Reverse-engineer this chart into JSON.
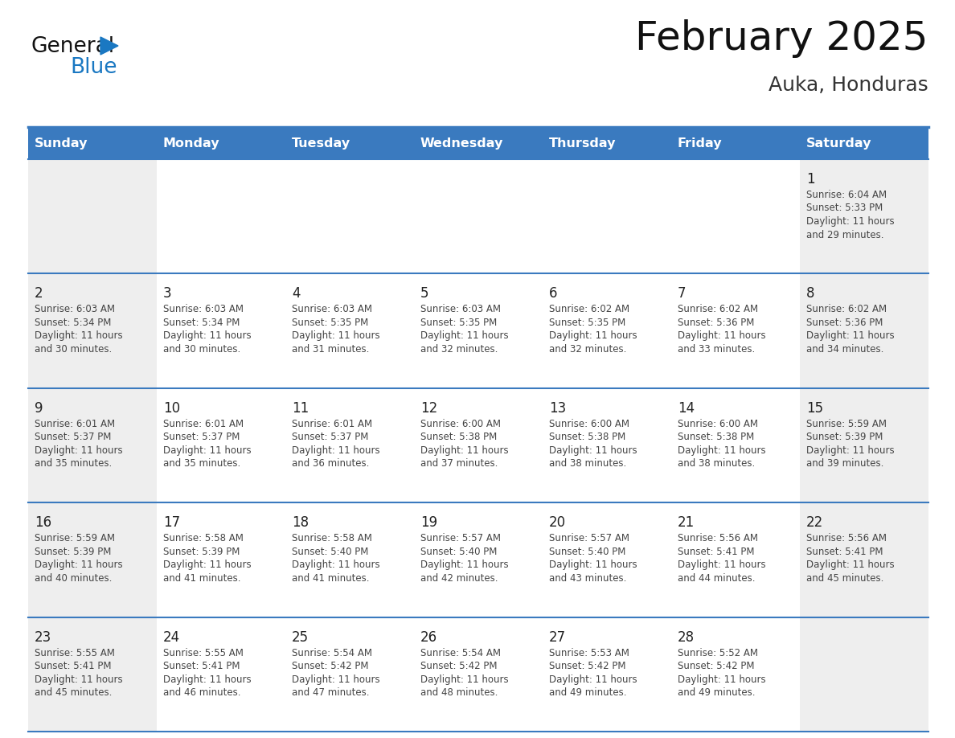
{
  "title": "February 2025",
  "subtitle": "Auka, Honduras",
  "days_of_week": [
    "Sunday",
    "Monday",
    "Tuesday",
    "Wednesday",
    "Thursday",
    "Friday",
    "Saturday"
  ],
  "header_bg": "#3a7abf",
  "header_text_color": "#ffffff",
  "cell_bg_weekend": "#eeeeee",
  "cell_bg_weekday": "#ffffff",
  "day_num_color": "#222222",
  "text_color": "#444444",
  "border_color": "#3a7abf",
  "title_color": "#111111",
  "subtitle_color": "#333333",
  "logo_general_color": "#111111",
  "logo_blue_color": "#1a78c2",
  "weeks": [
    [
      {
        "day": null,
        "sunrise": null,
        "sunset": null,
        "daylight_hours": null,
        "daylight_mins": null
      },
      {
        "day": null,
        "sunrise": null,
        "sunset": null,
        "daylight_hours": null,
        "daylight_mins": null
      },
      {
        "day": null,
        "sunrise": null,
        "sunset": null,
        "daylight_hours": null,
        "daylight_mins": null
      },
      {
        "day": null,
        "sunrise": null,
        "sunset": null,
        "daylight_hours": null,
        "daylight_mins": null
      },
      {
        "day": null,
        "sunrise": null,
        "sunset": null,
        "daylight_hours": null,
        "daylight_mins": null
      },
      {
        "day": null,
        "sunrise": null,
        "sunset": null,
        "daylight_hours": null,
        "daylight_mins": null
      },
      {
        "day": 1,
        "sunrise": "6:04 AM",
        "sunset": "5:33 PM",
        "daylight_hours": 11,
        "daylight_mins": 29
      }
    ],
    [
      {
        "day": 2,
        "sunrise": "6:03 AM",
        "sunset": "5:34 PM",
        "daylight_hours": 11,
        "daylight_mins": 30
      },
      {
        "day": 3,
        "sunrise": "6:03 AM",
        "sunset": "5:34 PM",
        "daylight_hours": 11,
        "daylight_mins": 30
      },
      {
        "day": 4,
        "sunrise": "6:03 AM",
        "sunset": "5:35 PM",
        "daylight_hours": 11,
        "daylight_mins": 31
      },
      {
        "day": 5,
        "sunrise": "6:03 AM",
        "sunset": "5:35 PM",
        "daylight_hours": 11,
        "daylight_mins": 32
      },
      {
        "day": 6,
        "sunrise": "6:02 AM",
        "sunset": "5:35 PM",
        "daylight_hours": 11,
        "daylight_mins": 32
      },
      {
        "day": 7,
        "sunrise": "6:02 AM",
        "sunset": "5:36 PM",
        "daylight_hours": 11,
        "daylight_mins": 33
      },
      {
        "day": 8,
        "sunrise": "6:02 AM",
        "sunset": "5:36 PM",
        "daylight_hours": 11,
        "daylight_mins": 34
      }
    ],
    [
      {
        "day": 9,
        "sunrise": "6:01 AM",
        "sunset": "5:37 PM",
        "daylight_hours": 11,
        "daylight_mins": 35
      },
      {
        "day": 10,
        "sunrise": "6:01 AM",
        "sunset": "5:37 PM",
        "daylight_hours": 11,
        "daylight_mins": 35
      },
      {
        "day": 11,
        "sunrise": "6:01 AM",
        "sunset": "5:37 PM",
        "daylight_hours": 11,
        "daylight_mins": 36
      },
      {
        "day": 12,
        "sunrise": "6:00 AM",
        "sunset": "5:38 PM",
        "daylight_hours": 11,
        "daylight_mins": 37
      },
      {
        "day": 13,
        "sunrise": "6:00 AM",
        "sunset": "5:38 PM",
        "daylight_hours": 11,
        "daylight_mins": 38
      },
      {
        "day": 14,
        "sunrise": "6:00 AM",
        "sunset": "5:38 PM",
        "daylight_hours": 11,
        "daylight_mins": 38
      },
      {
        "day": 15,
        "sunrise": "5:59 AM",
        "sunset": "5:39 PM",
        "daylight_hours": 11,
        "daylight_mins": 39
      }
    ],
    [
      {
        "day": 16,
        "sunrise": "5:59 AM",
        "sunset": "5:39 PM",
        "daylight_hours": 11,
        "daylight_mins": 40
      },
      {
        "day": 17,
        "sunrise": "5:58 AM",
        "sunset": "5:39 PM",
        "daylight_hours": 11,
        "daylight_mins": 41
      },
      {
        "day": 18,
        "sunrise": "5:58 AM",
        "sunset": "5:40 PM",
        "daylight_hours": 11,
        "daylight_mins": 41
      },
      {
        "day": 19,
        "sunrise": "5:57 AM",
        "sunset": "5:40 PM",
        "daylight_hours": 11,
        "daylight_mins": 42
      },
      {
        "day": 20,
        "sunrise": "5:57 AM",
        "sunset": "5:40 PM",
        "daylight_hours": 11,
        "daylight_mins": 43
      },
      {
        "day": 21,
        "sunrise": "5:56 AM",
        "sunset": "5:41 PM",
        "daylight_hours": 11,
        "daylight_mins": 44
      },
      {
        "day": 22,
        "sunrise": "5:56 AM",
        "sunset": "5:41 PM",
        "daylight_hours": 11,
        "daylight_mins": 45
      }
    ],
    [
      {
        "day": 23,
        "sunrise": "5:55 AM",
        "sunset": "5:41 PM",
        "daylight_hours": 11,
        "daylight_mins": 45
      },
      {
        "day": 24,
        "sunrise": "5:55 AM",
        "sunset": "5:41 PM",
        "daylight_hours": 11,
        "daylight_mins": 46
      },
      {
        "day": 25,
        "sunrise": "5:54 AM",
        "sunset": "5:42 PM",
        "daylight_hours": 11,
        "daylight_mins": 47
      },
      {
        "day": 26,
        "sunrise": "5:54 AM",
        "sunset": "5:42 PM",
        "daylight_hours": 11,
        "daylight_mins": 48
      },
      {
        "day": 27,
        "sunrise": "5:53 AM",
        "sunset": "5:42 PM",
        "daylight_hours": 11,
        "daylight_mins": 49
      },
      {
        "day": 28,
        "sunrise": "5:52 AM",
        "sunset": "5:42 PM",
        "daylight_hours": 11,
        "daylight_mins": 49
      },
      {
        "day": null,
        "sunrise": null,
        "sunset": null,
        "daylight_hours": null,
        "daylight_mins": null
      }
    ]
  ]
}
